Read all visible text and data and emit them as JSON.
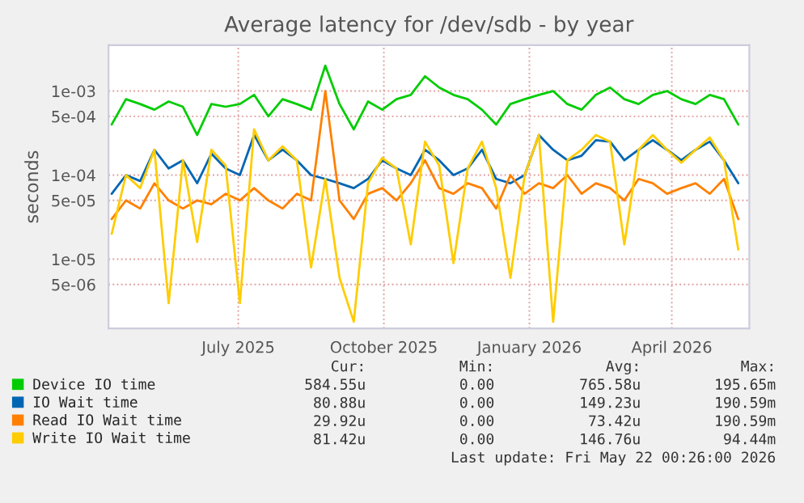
{
  "chart_data": {
    "type": "line",
    "title": "Average latency for /dev/sdb - by year",
    "ylabel": "seconds",
    "x": [
      "2025-04-12",
      "2025-04-21",
      "2025-04-30",
      "2025-05-09",
      "2025-05-18",
      "2025-05-27",
      "2025-06-05",
      "2025-06-14",
      "2025-06-23",
      "2025-07-02",
      "2025-07-11",
      "2025-07-20",
      "2025-07-29",
      "2025-08-07",
      "2025-08-16",
      "2025-08-25",
      "2025-09-03",
      "2025-09-12",
      "2025-09-21",
      "2025-09-30",
      "2025-10-09",
      "2025-10-18",
      "2025-10-27",
      "2025-11-05",
      "2025-11-14",
      "2025-11-23",
      "2025-12-02",
      "2025-12-11",
      "2025-12-20",
      "2025-12-29",
      "2026-01-07",
      "2026-01-16",
      "2026-01-25",
      "2026-02-03",
      "2026-02-12",
      "2026-02-21",
      "2026-03-02",
      "2026-03-11",
      "2026-03-20",
      "2026-03-29",
      "2026-04-07",
      "2026-04-16",
      "2026-04-25",
      "2026-05-04",
      "2026-05-13"
    ],
    "series": [
      {
        "name": "Device IO time",
        "color": "#00cc00",
        "values": [
          0.0004,
          0.0008,
          0.0007,
          0.0006,
          0.00075,
          0.00065,
          0.0003,
          0.0007,
          0.00065,
          0.0007,
          0.0009,
          0.0005,
          0.0008,
          0.0007,
          0.0006,
          0.002,
          0.0007,
          0.00035,
          0.00075,
          0.0006,
          0.0008,
          0.0009,
          0.0015,
          0.0011,
          0.0009,
          0.0008,
          0.0006,
          0.0004,
          0.0007,
          0.0008,
          0.0009,
          0.001,
          0.0007,
          0.0006,
          0.0009,
          0.0011,
          0.0008,
          0.0007,
          0.0009,
          0.001,
          0.0008,
          0.0007,
          0.0009,
          0.0008,
          0.0004
        ]
      },
      {
        "name": "IO Wait time",
        "color": "#0066b3",
        "values": [
          6e-05,
          0.0001,
          8.5e-05,
          0.0002,
          0.00012,
          0.00015,
          8e-05,
          0.00018,
          0.00012,
          0.0001,
          0.0003,
          0.00015,
          0.0002,
          0.00015,
          0.0001,
          9e-05,
          8e-05,
          7e-05,
          9e-05,
          0.00015,
          0.00012,
          0.0001,
          0.0002,
          0.00015,
          0.0001,
          0.00012,
          0.0002,
          9e-05,
          8e-05,
          0.0001,
          0.0003,
          0.0002,
          0.00015,
          0.00017,
          0.00026,
          0.00025,
          0.00015,
          0.0002,
          0.00026,
          0.0002,
          0.00015,
          0.0002,
          0.00025,
          0.00015,
          8e-05
        ]
      },
      {
        "name": "Read IO Wait time",
        "color": "#ff8000",
        "values": [
          3e-05,
          5e-05,
          4e-05,
          8e-05,
          5e-05,
          4e-05,
          5e-05,
          4.5e-05,
          6e-05,
          5e-05,
          7e-05,
          5e-05,
          4e-05,
          6e-05,
          5e-05,
          0.001,
          5e-05,
          3e-05,
          6e-05,
          7e-05,
          5e-05,
          8e-05,
          0.00015,
          7e-05,
          6e-05,
          8e-05,
          7e-05,
          4e-05,
          0.0001,
          6e-05,
          8e-05,
          7e-05,
          0.0001,
          6e-05,
          8e-05,
          7e-05,
          5e-05,
          9e-05,
          8e-05,
          6e-05,
          7e-05,
          8e-05,
          6e-05,
          9e-05,
          3e-05
        ]
      },
      {
        "name": "Write IO Wait time",
        "color": "#ffcc00",
        "values": [
          2e-05,
          0.0001,
          7e-05,
          0.0002,
          3e-06,
          0.00015,
          1.6e-05,
          0.0002,
          0.00013,
          3e-06,
          0.00035,
          0.00015,
          0.00022,
          0.00015,
          8e-06,
          9e-05,
          6e-06,
          1.8e-06,
          8e-05,
          0.00016,
          0.00012,
          1.5e-05,
          0.00025,
          0.00013,
          9e-06,
          0.00012,
          0.00025,
          7e-05,
          6e-06,
          0.0001,
          0.0003,
          1.8e-06,
          0.00015,
          0.0002,
          0.0003,
          0.00025,
          1.5e-05,
          0.0002,
          0.0003,
          0.0002,
          0.00014,
          0.0002,
          0.00028,
          0.00015,
          1.3e-05
        ]
      }
    ],
    "log": true,
    "xlim": [
      "2025-04-10",
      "2026-05-20"
    ],
    "xticks": [
      {
        "value": "2025-07-01",
        "label": "July 2025"
      },
      {
        "value": "2025-10-01",
        "label": "October 2025"
      },
      {
        "value": "2026-01-01",
        "label": "January 2026"
      },
      {
        "value": "2026-04-01",
        "label": "April 2026"
      }
    ],
    "ylim": [
      1.5e-06,
      0.0035
    ],
    "yticks": [
      {
        "value": 5e-06,
        "label": "5e-06"
      },
      {
        "value": 1e-05,
        "label": "1e-05"
      },
      {
        "value": 5e-05,
        "label": "5e-05"
      },
      {
        "value": 0.0001,
        "label": "1e-04"
      },
      {
        "value": 0.0005,
        "label": "5e-04"
      },
      {
        "value": 0.001,
        "label": "1e-03"
      }
    ],
    "grid": true,
    "legend": "bottom left",
    "annotations": [
      "Cur:",
      "Min:",
      "Avg:",
      "Max:",
      "584.55u",
      "0.00",
      "765.58u",
      "195.65m",
      "80.88u",
      "0.00",
      "149.23u",
      "190.59m",
      "29.92u",
      "0.00",
      "73.42u",
      "190.59m",
      "81.42u",
      "0.00",
      "146.76u",
      "94.44m",
      "Last update: Fri May 22 00:26:00 2026"
    ]
  }
}
